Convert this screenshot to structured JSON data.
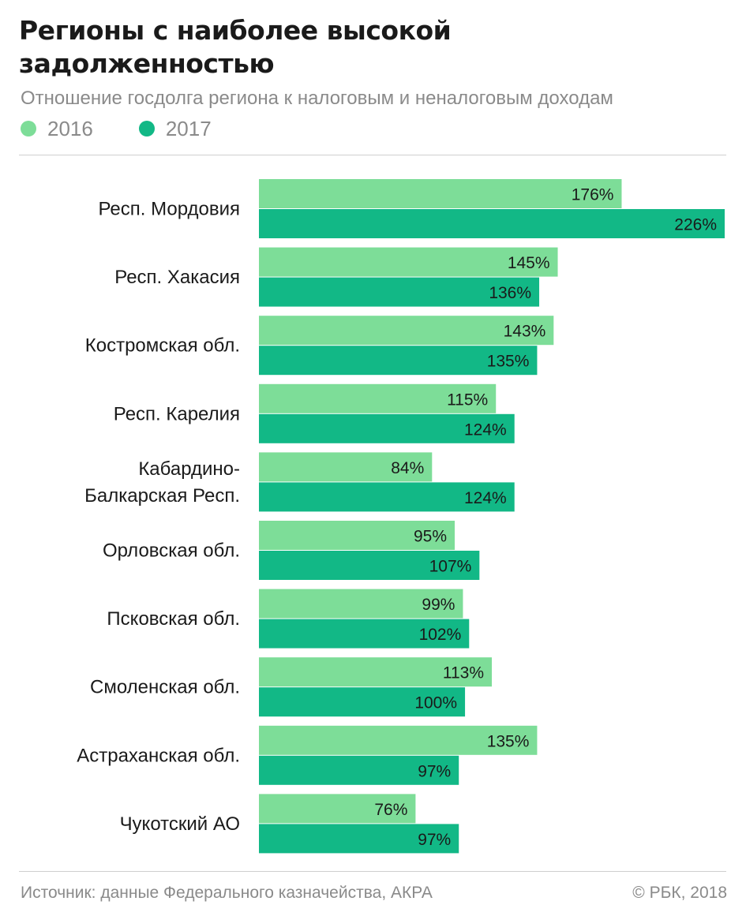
{
  "title": "Регионы с наиболее высокой задолженностью",
  "subtitle": "Отношение госдолга региона к налоговым и неналоговым доходам",
  "colors": {
    "light_green": "#7ddd98",
    "dark_green": "#12b886",
    "text": "#1a1a1a",
    "muted": "#8a8a8a",
    "rule": "#cfcfcf"
  },
  "legend": [
    {
      "label": "2016",
      "color": "#7ddd98"
    },
    {
      "label": "2017",
      "color": "#12b886"
    }
  ],
  "chart_data": {
    "type": "bar",
    "orientation": "horizontal",
    "categories": [
      "Респ. Мордовия",
      "Респ. Хакасия",
      "Костромская обл.",
      "Респ. Карелия",
      "Кабардино-\nБалкарская Респ.",
      "Орловская обл.",
      "Псковская обл.",
      "Смоленская обл.",
      "Астраханская обл.",
      "Чукотский АО"
    ],
    "series": [
      {
        "name": "2016",
        "color": "#7ddd98",
        "values": [
          176,
          145,
          143,
          115,
          84,
          95,
          99,
          113,
          135,
          76
        ],
        "labels": [
          "176%",
          "145%",
          "143%",
          "115%",
          "84%",
          "95%",
          "99%",
          "113%",
          "135%",
          "76%"
        ]
      },
      {
        "name": "2017",
        "color": "#12b886",
        "values": [
          226,
          136,
          135,
          124,
          124,
          107,
          102,
          100,
          97,
          97
        ],
        "labels": [
          "226%",
          "136%",
          "135%",
          "124%",
          "124%",
          "107%",
          "102%",
          "100%",
          "97%",
          "97%"
        ]
      }
    ],
    "title": "Регионы с наиболее высокой задолженностью",
    "subtitle": "Отношение госдолга региона к налоговым и неналоговым доходам",
    "unit": "%",
    "xlim": [
      0,
      226
    ],
    "grid": false,
    "axes_visible": false,
    "value_labels": "inside-end",
    "legend_position": "top-left"
  },
  "footer": {
    "source": "Источник: данные Федерального казначейства, АКРА",
    "copyright": "© РБК, 2018"
  }
}
